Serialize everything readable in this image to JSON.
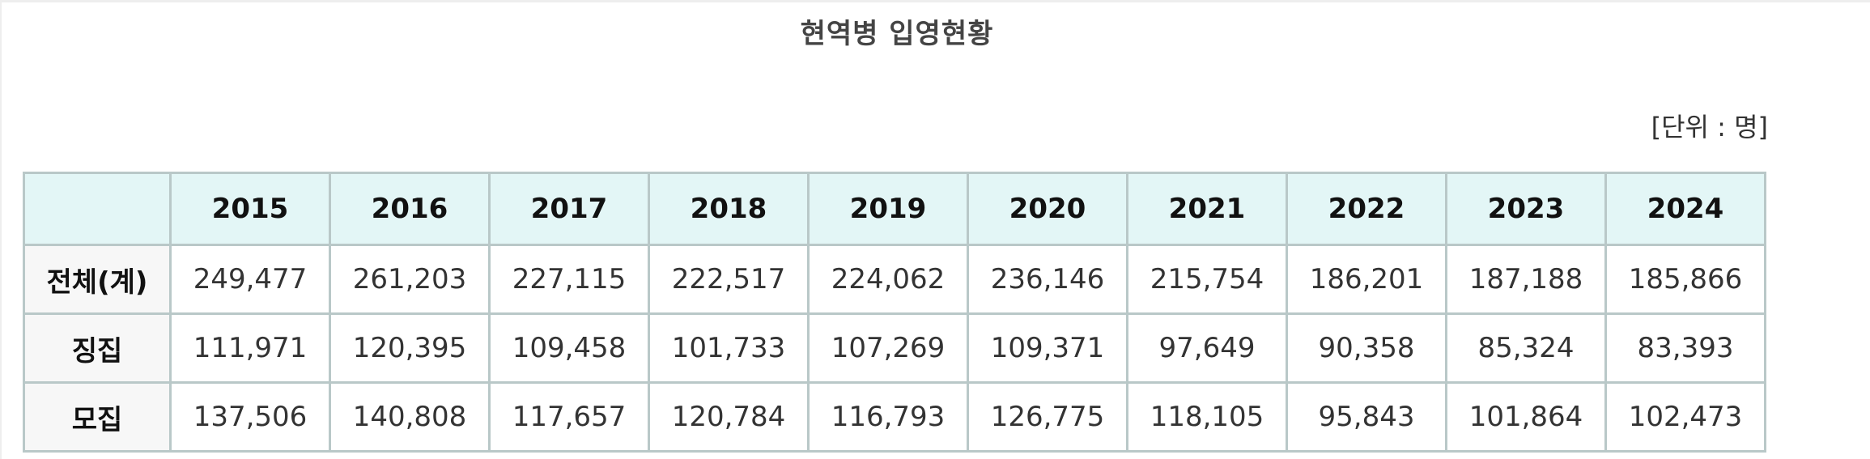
{
  "title": "현역병 입영현황",
  "unit": "[단위 : 명]",
  "table": {
    "corner": "",
    "years": [
      "2015",
      "2016",
      "2017",
      "2018",
      "2019",
      "2020",
      "2021",
      "2022",
      "2023",
      "2024"
    ],
    "rows": [
      {
        "label": "전체(계)",
        "values": [
          "249,477",
          "261,203",
          "227,115",
          "222,517",
          "224,062",
          "236,146",
          "215,754",
          "186,201",
          "187,188",
          "185,866"
        ]
      },
      {
        "label": "징집",
        "values": [
          "111,971",
          "120,395",
          "109,458",
          "101,733",
          "107,269",
          "109,371",
          "97,649",
          "90,358",
          "85,324",
          "83,393"
        ]
      },
      {
        "label": "모집",
        "values": [
          "137,506",
          "140,808",
          "117,657",
          "120,784",
          "116,793",
          "126,775",
          "118,105",
          "95,843",
          "101,864",
          "102,473"
        ]
      }
    ]
  }
}
